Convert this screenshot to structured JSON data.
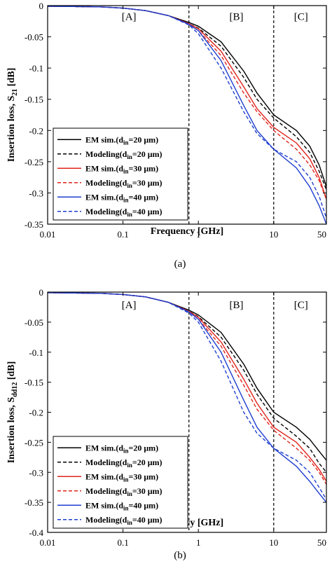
{
  "chart_data": [
    {
      "panel": "(a)",
      "type": "line",
      "xlabel": "Frequency [GHz]",
      "ylabel": "Insertion loss, S",
      "ylabel_sub": "21",
      "ylabel_unit": " [dB]",
      "xscale": "log",
      "xlim": [
        0.01,
        50
      ],
      "ylim": [
        -0.35,
        0
      ],
      "xticks": [
        0.01,
        0.1,
        1,
        10,
        50
      ],
      "xtick_labels": [
        "0.01",
        "0.1",
        "1",
        "10",
        "50"
      ],
      "yticks": [
        0,
        -0.05,
        -0.1,
        -0.15,
        -0.2,
        -0.25,
        -0.3,
        -0.35
      ],
      "ytick_labels": [
        "0",
        "-0.05",
        "-0.1",
        "-0.15",
        "-0.2",
        "-0.25",
        "-0.3",
        "-0.35"
      ],
      "vlines": [
        0.75,
        10
      ],
      "regions": [
        {
          "label": "[A]",
          "x": 0.12,
          "y": -0.016
        },
        {
          "label": "[B]",
          "x": 3.2,
          "y": -0.016
        },
        {
          "label": "[C]",
          "x": 23,
          "y": -0.016
        }
      ],
      "legend_position": "bottom-left",
      "series": [
        {
          "name": "EM sim.(din=20 μm)",
          "label_main": "EM sim.(d",
          "label_sub": "in",
          "label_rest": "=20 μm)",
          "color": "#000000",
          "dash": "solid",
          "x": [
            0.01,
            0.05,
            0.1,
            0.2,
            0.4,
            0.75,
            1,
            2,
            4,
            6,
            10,
            20,
            30,
            40,
            50
          ],
          "y": [
            -0.001,
            -0.002,
            -0.004,
            -0.008,
            -0.016,
            -0.027,
            -0.033,
            -0.058,
            -0.105,
            -0.14,
            -0.175,
            -0.2,
            -0.225,
            -0.255,
            -0.29
          ]
        },
        {
          "name": "Modeling(din=20 μm)",
          "label_main": "Modeling(d",
          "label_sub": "in",
          "label_rest": "=20 μm)",
          "color": "#000000",
          "dash": "dashed",
          "x": [
            0.01,
            0.05,
            0.1,
            0.2,
            0.4,
            0.75,
            1,
            2,
            4,
            6,
            10,
            20,
            30,
            40,
            50
          ],
          "y": [
            -0.001,
            -0.002,
            -0.004,
            -0.008,
            -0.016,
            -0.029,
            -0.036,
            -0.065,
            -0.115,
            -0.15,
            -0.18,
            -0.21,
            -0.235,
            -0.265,
            -0.295
          ]
        },
        {
          "name": "EM sim.(din=30 μm)",
          "label_main": "EM sim.(d",
          "label_sub": "in",
          "label_rest": "=30 μm)",
          "color": "#e0241b",
          "dash": "solid",
          "x": [
            0.01,
            0.05,
            0.1,
            0.2,
            0.4,
            0.75,
            1,
            2,
            4,
            6,
            10,
            20,
            30,
            40,
            50
          ],
          "y": [
            -0.001,
            -0.002,
            -0.004,
            -0.008,
            -0.016,
            -0.029,
            -0.037,
            -0.073,
            -0.13,
            -0.165,
            -0.195,
            -0.22,
            -0.245,
            -0.275,
            -0.31
          ]
        },
        {
          "name": "Modeling(din=30 μm)",
          "label_main": "Modeling(d",
          "label_sub": "in",
          "label_rest": "=30 μm)",
          "color": "#e0241b",
          "dash": "dashed",
          "x": [
            0.01,
            0.05,
            0.1,
            0.2,
            0.4,
            0.75,
            1,
            2,
            4,
            6,
            10,
            20,
            30,
            40,
            50
          ],
          "y": [
            -0.001,
            -0.002,
            -0.004,
            -0.008,
            -0.016,
            -0.03,
            -0.04,
            -0.08,
            -0.14,
            -0.17,
            -0.2,
            -0.23,
            -0.255,
            -0.28,
            -0.31
          ]
        },
        {
          "name": "EM sim.(din=40 μm)",
          "label_main": "EM sim.(d",
          "label_sub": "in",
          "label_rest": "=40 μm)",
          "color": "#1f3fd0",
          "dash": "solid",
          "x": [
            0.01,
            0.05,
            0.1,
            0.2,
            0.4,
            0.75,
            1,
            2,
            4,
            6,
            10,
            20,
            30,
            40,
            50
          ],
          "y": [
            -0.001,
            -0.002,
            -0.004,
            -0.008,
            -0.016,
            -0.03,
            -0.04,
            -0.088,
            -0.16,
            -0.2,
            -0.23,
            -0.26,
            -0.29,
            -0.32,
            -0.35
          ]
        },
        {
          "name": "Modeling(din=40 μm)",
          "label_main": "Modeling(d",
          "label_sub": "in",
          "label_rest": "=40 μm)",
          "color": "#1f3fd0",
          "dash": "dashed",
          "x": [
            0.01,
            0.05,
            0.1,
            0.2,
            0.4,
            0.75,
            1,
            2,
            4,
            6,
            10,
            20,
            30,
            40,
            50
          ],
          "y": [
            -0.001,
            -0.002,
            -0.004,
            -0.008,
            -0.016,
            -0.031,
            -0.045,
            -0.1,
            -0.17,
            -0.205,
            -0.23,
            -0.25,
            -0.275,
            -0.305,
            -0.34
          ]
        }
      ]
    },
    {
      "panel": "(b)",
      "type": "line",
      "xlabel": "Frequency [GHz]",
      "ylabel": "Insertion loss, S",
      "ylabel_sub": "dd12",
      "ylabel_unit": " [dB]",
      "xscale": "log",
      "xlim": [
        0.01,
        50
      ],
      "ylim": [
        -0.4,
        0
      ],
      "xticks": [
        0.01,
        0.1,
        1,
        10,
        50
      ],
      "xtick_labels": [
        "0.01",
        "0.1",
        "1",
        "10",
        "50"
      ],
      "yticks": [
        0,
        -0.05,
        -0.1,
        -0.15,
        -0.2,
        -0.25,
        -0.3,
        -0.35,
        -0.4
      ],
      "ytick_labels": [
        "0",
        "-0.05",
        "-0.1",
        "-0.15",
        "-0.2",
        "-0.25",
        "-0.3",
        "-0.35",
        "-0.4"
      ],
      "vlines": [
        0.75,
        10
      ],
      "regions": [
        {
          "label": "[A]",
          "x": 0.12,
          "y": -0.02
        },
        {
          "label": "[B]",
          "x": 3.2,
          "y": -0.02
        },
        {
          "label": "[C]",
          "x": 23,
          "y": -0.02
        }
      ],
      "legend_position": "bottom-left",
      "series": [
        {
          "name": "EM sim.(din=20 μm)",
          "label_main": "EM sim.(d",
          "label_sub": "in",
          "label_rest": "=20 μm)",
          "color": "#000000",
          "dash": "solid",
          "x": [
            0.01,
            0.05,
            0.1,
            0.2,
            0.4,
            0.75,
            1,
            2,
            4,
            6,
            10,
            20,
            30,
            40,
            50
          ],
          "y": [
            -0.001,
            -0.002,
            -0.004,
            -0.008,
            -0.017,
            -0.03,
            -0.038,
            -0.067,
            -0.12,
            -0.16,
            -0.2,
            -0.225,
            -0.245,
            -0.265,
            -0.28
          ]
        },
        {
          "name": "Modeling(din=20 μm)",
          "label_main": "Modeling(d",
          "label_sub": "in",
          "label_rest": "=20 μm)",
          "color": "#000000",
          "dash": "dashed",
          "x": [
            0.01,
            0.05,
            0.1,
            0.2,
            0.4,
            0.75,
            1,
            2,
            4,
            6,
            10,
            20,
            30,
            40,
            50
          ],
          "y": [
            -0.001,
            -0.002,
            -0.004,
            -0.008,
            -0.017,
            -0.032,
            -0.041,
            -0.075,
            -0.13,
            -0.17,
            -0.21,
            -0.24,
            -0.26,
            -0.285,
            -0.3
          ]
        },
        {
          "name": "EM sim.(din=30 μm)",
          "label_main": "EM sim.(d",
          "label_sub": "in",
          "label_rest": "=30 μm)",
          "color": "#e0241b",
          "dash": "solid",
          "x": [
            0.01,
            0.05,
            0.1,
            0.2,
            0.4,
            0.75,
            1,
            2,
            4,
            6,
            10,
            20,
            30,
            40,
            50
          ],
          "y": [
            -0.001,
            -0.002,
            -0.004,
            -0.008,
            -0.017,
            -0.032,
            -0.042,
            -0.083,
            -0.145,
            -0.185,
            -0.225,
            -0.25,
            -0.275,
            -0.295,
            -0.315
          ]
        },
        {
          "name": "Modeling(din=30 μm)",
          "label_main": "Modeling(d",
          "label_sub": "in",
          "label_rest": "=30 μm)",
          "color": "#e0241b",
          "dash": "dashed",
          "x": [
            0.01,
            0.05,
            0.1,
            0.2,
            0.4,
            0.75,
            1,
            2,
            4,
            6,
            10,
            20,
            30,
            40,
            50
          ],
          "y": [
            -0.001,
            -0.002,
            -0.004,
            -0.008,
            -0.017,
            -0.033,
            -0.045,
            -0.09,
            -0.155,
            -0.195,
            -0.23,
            -0.26,
            -0.28,
            -0.3,
            -0.32
          ]
        },
        {
          "name": "EM sim.(din=40 μm)",
          "label_main": "EM sim.(d",
          "label_sub": "in",
          "label_rest": "=40 μm)",
          "color": "#1f3fd0",
          "dash": "solid",
          "x": [
            0.01,
            0.05,
            0.1,
            0.2,
            0.4,
            0.75,
            1,
            2,
            4,
            6,
            10,
            20,
            30,
            40,
            50
          ],
          "y": [
            -0.001,
            -0.002,
            -0.004,
            -0.008,
            -0.017,
            -0.033,
            -0.045,
            -0.1,
            -0.18,
            -0.225,
            -0.26,
            -0.29,
            -0.315,
            -0.335,
            -0.35
          ]
        },
        {
          "name": "Modeling(din=40 μm)",
          "label_main": "Modeling(d",
          "label_sub": "in",
          "label_rest": "=40 μm)",
          "color": "#1f3fd0",
          "dash": "dashed",
          "x": [
            0.01,
            0.05,
            0.1,
            0.2,
            0.4,
            0.75,
            1,
            2,
            4,
            6,
            10,
            20,
            30,
            40,
            50
          ],
          "y": [
            -0.001,
            -0.002,
            -0.004,
            -0.008,
            -0.017,
            -0.035,
            -0.05,
            -0.115,
            -0.2,
            -0.235,
            -0.26,
            -0.28,
            -0.3,
            -0.325,
            -0.345
          ]
        }
      ]
    }
  ]
}
